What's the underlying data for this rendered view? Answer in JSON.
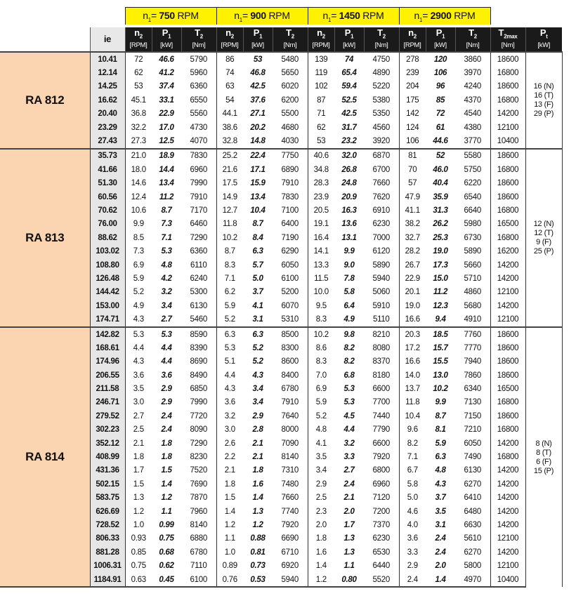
{
  "speed_groups": [
    {
      "prefix": "n",
      "sub": "1",
      "eq": "= ",
      "speed": "750",
      "unit": " RPM"
    },
    {
      "prefix": "n",
      "sub": "1",
      "eq": "= ",
      "speed": "900",
      "unit": " RPM"
    },
    {
      "prefix": "n",
      "sub": "1",
      "eq": "= ",
      "speed": "1450",
      "unit": " RPM"
    },
    {
      "prefix": "n",
      "sub": "1",
      "eq": "= ",
      "speed": "2900",
      "unit": " RPM"
    }
  ],
  "columns": {
    "ie": "ie",
    "n2": {
      "main": "n",
      "sub": "2",
      "unit": "[RPM]"
    },
    "p1": {
      "main": "P",
      "sub": "1",
      "unit": "[kW]"
    },
    "t2": {
      "main": "T",
      "sub": "2",
      "unit": "[Nm]"
    },
    "t2max": {
      "main": "T",
      "sub": "2max",
      "unit": "[Nm]"
    },
    "pt": {
      "main": "P",
      "sub": "t",
      "unit": "[kW]"
    }
  },
  "colors": {
    "speed_header": "#fff200",
    "column_header": "#1a1a1a",
    "model_cell": "#fbd4b1",
    "ie_cell": "#e6e6e6"
  },
  "models": [
    {
      "name": "RA 812",
      "pt": [
        "16 (N)",
        "16 (T)",
        "13 (F)",
        "29 (P)"
      ],
      "rows": [
        [
          "10.41",
          "72",
          "46.6",
          "5790",
          "86",
          "53",
          "5480",
          "139",
          "74",
          "4750",
          "278",
          "120",
          "3860",
          "18600"
        ],
        [
          "12.14",
          "62",
          "41.2",
          "5960",
          "74",
          "46.8",
          "5650",
          "119",
          "65.4",
          "4890",
          "239",
          "106",
          "3970",
          "16800"
        ],
        [
          "14.25",
          "53",
          "37.4",
          "6360",
          "63",
          "42.5",
          "6020",
          "102",
          "59.4",
          "5220",
          "204",
          "96",
          "4240",
          "18600"
        ],
        [
          "16.62",
          "45.1",
          "33.1",
          "6550",
          "54",
          "37.6",
          "6200",
          "87",
          "52.5",
          "5380",
          "175",
          "85",
          "4370",
          "16800"
        ],
        [
          "20.40",
          "36.8",
          "22.9",
          "5560",
          "44.1",
          "27.1",
          "5500",
          "71",
          "42.5",
          "5350",
          "142",
          "72",
          "4540",
          "14200"
        ],
        [
          "23.29",
          "32.2",
          "17.0",
          "4730",
          "38.6",
          "20.2",
          "4680",
          "62",
          "31.7",
          "4560",
          "124",
          "61",
          "4380",
          "12100"
        ],
        [
          "27.43",
          "27.3",
          "12.5",
          "4070",
          "32.8",
          "14.8",
          "4030",
          "53",
          "23.2",
          "3920",
          "106",
          "44.6",
          "3770",
          "10400"
        ]
      ]
    },
    {
      "name": "RA 813",
      "pt": [
        "12 (N)",
        "12 (T)",
        "9 (F)",
        "25 (P)"
      ],
      "rows": [
        [
          "35.73",
          "21.0",
          "18.9",
          "7830",
          "25.2",
          "22.4",
          "7750",
          "40.6",
          "32.0",
          "6870",
          "81",
          "52",
          "5580",
          "18600"
        ],
        [
          "41.66",
          "18.0",
          "14.4",
          "6960",
          "21.6",
          "17.1",
          "6890",
          "34.8",
          "26.8",
          "6700",
          "70",
          "46.0",
          "5750",
          "16800"
        ],
        [
          "51.30",
          "14.6",
          "13.4",
          "7990",
          "17.5",
          "15.9",
          "7910",
          "28.3",
          "24.8",
          "7660",
          "57",
          "40.4",
          "6220",
          "18600"
        ],
        [
          "60.56",
          "12.4",
          "11.2",
          "7910",
          "14.9",
          "13.4",
          "7830",
          "23.9",
          "20.9",
          "7620",
          "47.9",
          "35.9",
          "6540",
          "18600"
        ],
        [
          "70.62",
          "10.6",
          "8.7",
          "7170",
          "12.7",
          "10.4",
          "7100",
          "20.5",
          "16.3",
          "6910",
          "41.1",
          "31.3",
          "6640",
          "16800"
        ],
        [
          "76.00",
          "9.9",
          "7.3",
          "6460",
          "11.8",
          "8.7",
          "6400",
          "19.1",
          "13.6",
          "6230",
          "38.2",
          "26.2",
          "5980",
          "16500"
        ],
        [
          "88.62",
          "8.5",
          "7.1",
          "7290",
          "10.2",
          "8.4",
          "7190",
          "16.4",
          "13.1",
          "7000",
          "32.7",
          "25.3",
          "6730",
          "16800"
        ],
        [
          "103.02",
          "7.3",
          "5.3",
          "6360",
          "8.7",
          "6.3",
          "6290",
          "14.1",
          "9.9",
          "6120",
          "28.2",
          "19.0",
          "5890",
          "16200"
        ],
        [
          "108.80",
          "6.9",
          "4.8",
          "6110",
          "8.3",
          "5.7",
          "6050",
          "13.3",
          "9.0",
          "5890",
          "26.7",
          "17.3",
          "5660",
          "14200"
        ],
        [
          "126.48",
          "5.9",
          "4.2",
          "6240",
          "7.1",
          "5.0",
          "6100",
          "11.5",
          "7.8",
          "5940",
          "22.9",
          "15.0",
          "5710",
          "14200"
        ],
        [
          "144.42",
          "5.2",
          "3.2",
          "5300",
          "6.2",
          "3.7",
          "5200",
          "10.0",
          "5.8",
          "5060",
          "20.1",
          "11.2",
          "4860",
          "12100"
        ],
        [
          "153.00",
          "4.9",
          "3.4",
          "6130",
          "5.9",
          "4.1",
          "6070",
          "9.5",
          "6.4",
          "5910",
          "19.0",
          "12.3",
          "5680",
          "14200"
        ],
        [
          "174.71",
          "4.3",
          "2.7",
          "5460",
          "5.2",
          "3.1",
          "5310",
          "8.3",
          "4.9",
          "5110",
          "16.6",
          "9.4",
          "4910",
          "12100"
        ]
      ]
    },
    {
      "name": "RA 814",
      "pt": [
        "8 (N)",
        "8 (T)",
        "6 (F)",
        "15 (P)"
      ],
      "rows": [
        [
          "142.82",
          "5.3",
          "5.3",
          "8590",
          "6.3",
          "6.3",
          "8500",
          "10.2",
          "9.8",
          "8210",
          "20.3",
          "18.5",
          "7760",
          "18600"
        ],
        [
          "168.61",
          "4.4",
          "4.4",
          "8390",
          "5.3",
          "5.2",
          "8300",
          "8.6",
          "8.2",
          "8080",
          "17.2",
          "15.7",
          "7770",
          "18600"
        ],
        [
          "174.96",
          "4.3",
          "4.4",
          "8690",
          "5.1",
          "5.2",
          "8600",
          "8.3",
          "8.2",
          "8370",
          "16.6",
          "15.5",
          "7940",
          "18600"
        ],
        [
          "206.55",
          "3.6",
          "3.6",
          "8490",
          "4.4",
          "4.3",
          "8400",
          "7.0",
          "6.8",
          "8180",
          "14.0",
          "13.0",
          "7860",
          "18600"
        ],
        [
          "211.58",
          "3.5",
          "2.9",
          "6850",
          "4.3",
          "3.4",
          "6780",
          "6.9",
          "5.3",
          "6600",
          "13.7",
          "10.2",
          "6340",
          "16500"
        ],
        [
          "246.71",
          "3.0",
          "2.9",
          "7990",
          "3.6",
          "3.4",
          "7910",
          "5.9",
          "5.3",
          "7700",
          "11.8",
          "9.9",
          "7130",
          "16800"
        ],
        [
          "279.52",
          "2.7",
          "2.4",
          "7720",
          "3.2",
          "2.9",
          "7640",
          "5.2",
          "4.5",
          "7440",
          "10.4",
          "8.7",
          "7150",
          "18600"
        ],
        [
          "302.23",
          "2.5",
          "2.4",
          "8090",
          "3.0",
          "2.8",
          "8000",
          "4.8",
          "4.4",
          "7790",
          "9.6",
          "8.1",
          "7210",
          "16800"
        ],
        [
          "352.12",
          "2.1",
          "1.8",
          "7290",
          "2.6",
          "2.1",
          "7090",
          "4.1",
          "3.2",
          "6600",
          "8.2",
          "5.9",
          "6050",
          "14200"
        ],
        [
          "408.99",
          "1.8",
          "1.8",
          "8230",
          "2.2",
          "2.1",
          "8140",
          "3.5",
          "3.3",
          "7920",
          "7.1",
          "6.3",
          "7490",
          "16800"
        ],
        [
          "431.36",
          "1.7",
          "1.5",
          "7520",
          "2.1",
          "1.8",
          "7310",
          "3.4",
          "2.7",
          "6800",
          "6.7",
          "4.8",
          "6130",
          "14200"
        ],
        [
          "502.15",
          "1.5",
          "1.4",
          "7690",
          "1.8",
          "1.6",
          "7480",
          "2.9",
          "2.4",
          "6960",
          "5.8",
          "4.3",
          "6270",
          "14200"
        ],
        [
          "583.75",
          "1.3",
          "1.2",
          "7870",
          "1.5",
          "1.4",
          "7660",
          "2.5",
          "2.1",
          "7120",
          "5.0",
          "3.7",
          "6410",
          "14200"
        ],
        [
          "626.69",
          "1.2",
          "1.1",
          "7960",
          "1.4",
          "1.3",
          "7740",
          "2.3",
          "2.0",
          "7200",
          "4.6",
          "3.5",
          "6480",
          "14200"
        ],
        [
          "728.52",
          "1.0",
          "0.99",
          "8140",
          "1.2",
          "1.2",
          "7920",
          "2.0",
          "1.7",
          "7370",
          "4.0",
          "3.1",
          "6630",
          "14200"
        ],
        [
          "806.33",
          "0.93",
          "0.75",
          "6880",
          "1.1",
          "0.88",
          "6690",
          "1.8",
          "1.3",
          "6230",
          "3.6",
          "2.4",
          "5610",
          "12100"
        ],
        [
          "881.28",
          "0.85",
          "0.68",
          "6780",
          "1.0",
          "0.81",
          "6710",
          "1.6",
          "1.3",
          "6530",
          "3.3",
          "2.4",
          "6270",
          "14200"
        ],
        [
          "1006.31",
          "0.75",
          "0.62",
          "7110",
          "0.89",
          "0.73",
          "6920",
          "1.4",
          "1.1",
          "6440",
          "2.9",
          "2.0",
          "5800",
          "12100"
        ],
        [
          "1184.91",
          "0.63",
          "0.45",
          "6100",
          "0.76",
          "0.53",
          "5940",
          "1.2",
          "0.80",
          "5520",
          "2.4",
          "1.4",
          "4970",
          "10400"
        ]
      ]
    }
  ]
}
